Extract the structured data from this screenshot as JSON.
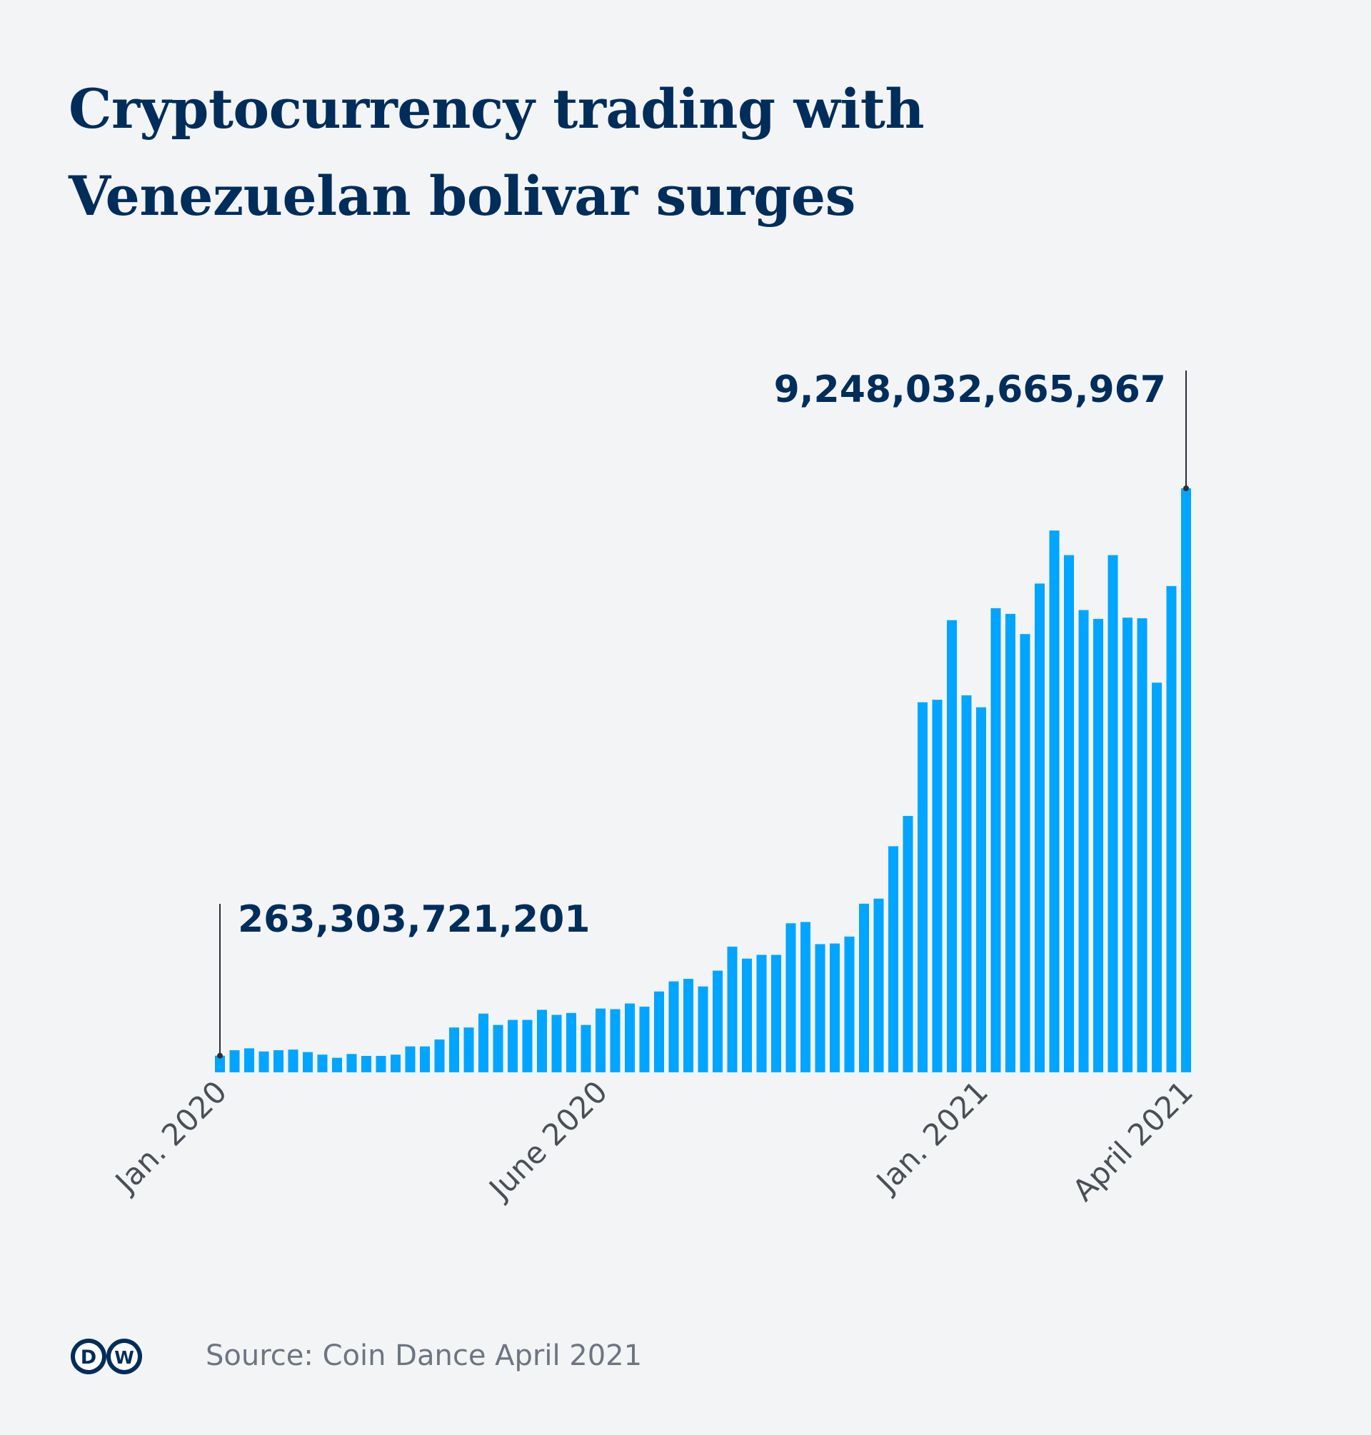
{
  "header": {
    "title_line1": "Cryptocurrency trading with",
    "title_line2": "Venezuelan bolivar surges"
  },
  "chart_data": {
    "type": "bar",
    "title": "Cryptocurrency trading with Venezuelan bolivar surges",
    "xlabel": "",
    "ylabel": "",
    "bar_color": "#00a5ff",
    "grid": false,
    "x_tick_labels": [
      {
        "label": "Jan. 2020",
        "index": 0
      },
      {
        "label": "June 2020",
        "index": 26
      },
      {
        "label": "Jan. 2021",
        "index": 52
      },
      {
        "label": "April 2021",
        "index": 66
      }
    ],
    "annotations": [
      {
        "label": "263,303,721,201",
        "index": 0,
        "value": 263303721201
      },
      {
        "label": "9,248,032,665,967",
        "index": 66,
        "value": 9248032665967
      }
    ],
    "ylim": [
      0,
      9248032665967
    ],
    "values": [
      263303721201,
      350000000000,
      380000000000,
      330000000000,
      350000000000,
      360000000000,
      320000000000,
      280000000000,
      230000000000,
      290000000000,
      260000000000,
      260000000000,
      280000000000,
      410000000000,
      410000000000,
      520000000000,
      710000000000,
      710000000000,
      930000000000,
      750000000000,
      830000000000,
      830000000000,
      990000000000,
      910000000000,
      940000000000,
      750000000000,
      1010000000000,
      1000000000000,
      1090000000000,
      1040000000000,
      1280000000000,
      1440000000000,
      1480000000000,
      1360000000000,
      1610000000000,
      1990000000000,
      1800000000000,
      1860000000000,
      1860000000000,
      2360000000000,
      2380000000000,
      2030000000000,
      2040000000000,
      2150000000000,
      2670000000000,
      2750000000000,
      3580000000000,
      4060000000000,
      5860000000000,
      5900000000000,
      7160000000000,
      5970000000000,
      5780000000000,
      7350000000000,
      7260000000000,
      6940000000000,
      7740000000000,
      8580000000000,
      8190000000000,
      7320000000000,
      7180000000000,
      8190000000000,
      7200000000000,
      7190000000000,
      6170000000000,
      7700000000000,
      9248032665967
    ]
  },
  "footer": {
    "logo_text": "DW",
    "source": "Source: Coin Dance April 2021"
  }
}
